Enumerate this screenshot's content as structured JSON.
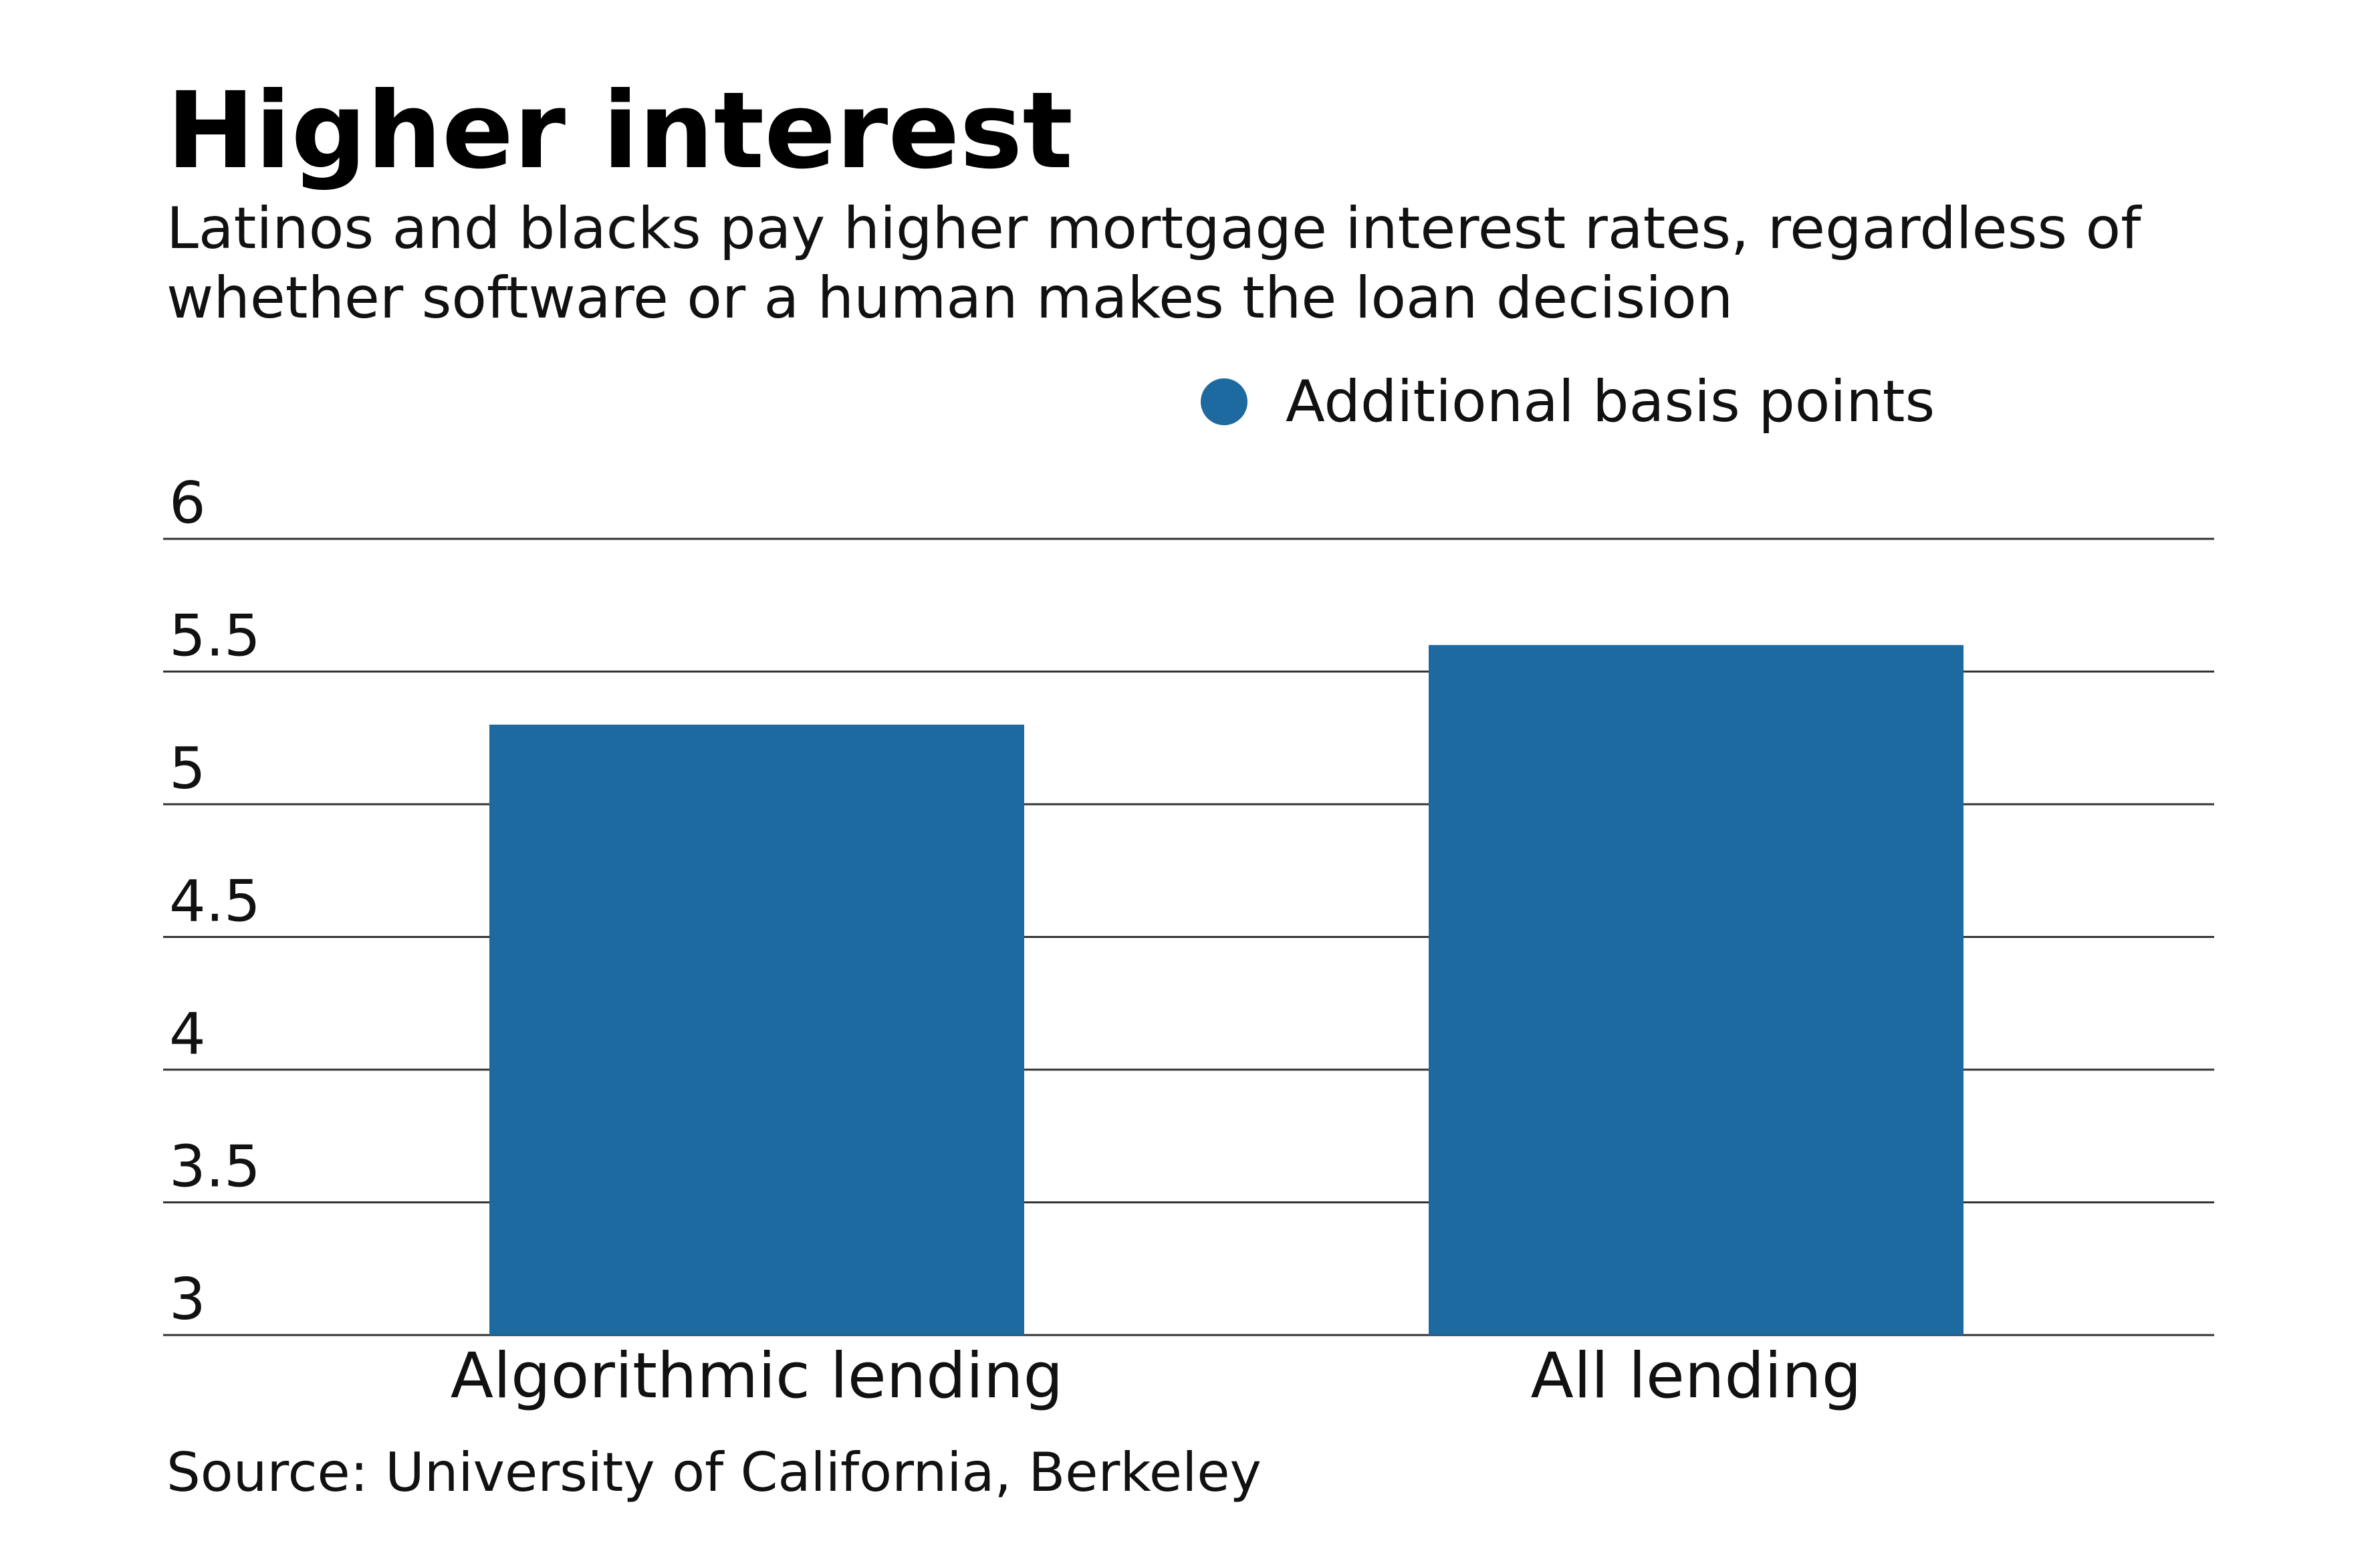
{
  "chart_data": {
    "type": "bar",
    "title": "Higher interest",
    "subtitle": "Latinos and blacks pay higher mortgage interest rates, regardless of whether software or a human makes the loan decision",
    "source": "Source: University of California, Berkeley",
    "categories": [
      "Algorithmic lending",
      "All lending"
    ],
    "series": [
      {
        "name": "Additional basis points",
        "color": "#1c6aa0",
        "values": [
          5.3,
          5.6
        ]
      }
    ],
    "ylim": [
      3,
      6
    ],
    "yticks": [
      3,
      3.5,
      4,
      4.5,
      5,
      5.5,
      6
    ],
    "grid": true
  }
}
